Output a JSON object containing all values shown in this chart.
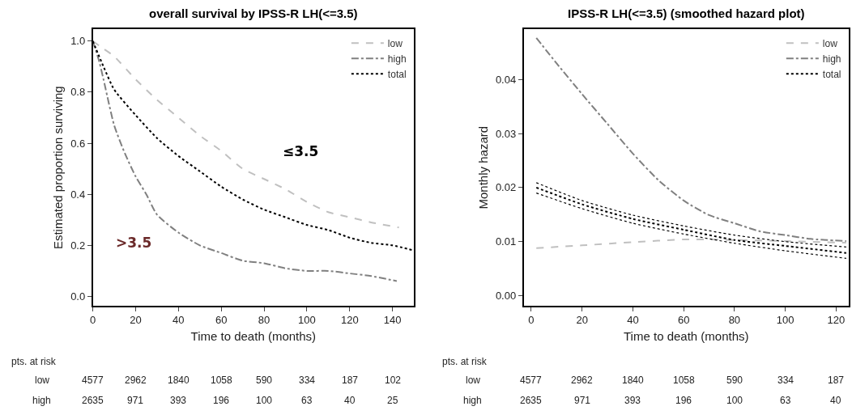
{
  "chart_data": [
    {
      "type": "line",
      "title": "overall survival by IPSS-R LH(<=3.5)",
      "xlabel": "Time to death (months)",
      "ylabel": "Estimated proportion surviving",
      "xlim": [
        0,
        150
      ],
      "xticks": [
        0,
        20,
        40,
        60,
        80,
        100,
        120,
        140
      ],
      "ylim": [
        -0.037,
        1.046
      ],
      "yticks": [
        {
          "value": 0,
          "label": "0.0"
        },
        {
          "value": 0.2,
          "label": "0.2"
        },
        {
          "value": 0.4,
          "label": "0.4"
        },
        {
          "value": 0.6,
          "label": "0.6"
        },
        {
          "value": 0.8,
          "label": "0.8"
        },
        {
          "value": 1,
          "label": "1.0"
        }
      ],
      "legend": "top right",
      "marker": "none",
      "series": [
        {
          "name": "low",
          "color": "#c0c0c0",
          "line_style": "dashed",
          "x": [
            0,
            5,
            10,
            20,
            30,
            40,
            50,
            60,
            70,
            80,
            90,
            100,
            110,
            120,
            130,
            143
          ],
          "values": [
            1.0,
            0.97,
            0.94,
            0.85,
            0.77,
            0.7,
            0.63,
            0.57,
            0.5,
            0.46,
            0.42,
            0.37,
            0.33,
            0.31,
            0.29,
            0.27
          ]
        },
        {
          "name": "high",
          "color": "#808080",
          "line_style": "dashdot",
          "x": [
            0,
            3,
            5,
            10,
            15,
            20,
            25,
            30,
            40,
            50,
            60,
            70,
            80,
            90,
            100,
            110,
            120,
            130,
            142
          ],
          "values": [
            1.0,
            0.92,
            0.85,
            0.67,
            0.56,
            0.47,
            0.4,
            0.32,
            0.25,
            0.2,
            0.17,
            0.14,
            0.13,
            0.11,
            0.1,
            0.1,
            0.09,
            0.08,
            0.06
          ]
        },
        {
          "name": "total",
          "color": "#000000",
          "line_style": "dotted",
          "x": [
            0,
            5,
            10,
            20,
            30,
            40,
            50,
            60,
            70,
            80,
            90,
            100,
            110,
            120,
            130,
            140,
            150
          ],
          "values": [
            1.0,
            0.9,
            0.81,
            0.71,
            0.62,
            0.55,
            0.49,
            0.43,
            0.38,
            0.34,
            0.31,
            0.28,
            0.26,
            0.23,
            0.21,
            0.2,
            0.18
          ]
        }
      ],
      "annotations": [
        "≤3.5",
        ">3.5",
        "pts. at risk",
        "low",
        "4577",
        "2962",
        "1840",
        "1058",
        "590",
        "334",
        "187",
        "102",
        "high",
        "2635",
        "971",
        "393",
        "196",
        "100",
        "63",
        "40",
        "25"
      ]
    },
    {
      "type": "line",
      "title": "IPSS-R LH(<=3.5) (smoothed hazard plot)",
      "xlabel": "Time to death (months)",
      "ylabel": "Monthly hazard",
      "xlim": [
        -3,
        125
      ],
      "xticks": [
        0,
        20,
        40,
        60,
        80,
        100,
        120
      ],
      "ylim": [
        -0.0019,
        0.0493
      ],
      "yticks": [
        {
          "value": 0,
          "label": "0.00"
        },
        {
          "value": 0.01,
          "label": "0.01"
        },
        {
          "value": 0.02,
          "label": "0.02"
        },
        {
          "value": 0.03,
          "label": "0.03"
        },
        {
          "value": 0.04,
          "label": "0.04"
        }
      ],
      "legend": "top right",
      "marker": "none",
      "series": [
        {
          "name": "low",
          "color": "#c0c0c0",
          "line_style": "dashed",
          "x": [
            2,
            20,
            40,
            60,
            70,
            80,
            100,
            124
          ],
          "values": [
            0.0088,
            0.0093,
            0.0099,
            0.0104,
            0.0104,
            0.0103,
            0.0101,
            0.0098
          ]
        },
        {
          "name": "high",
          "color": "#808080",
          "line_style": "dashdot",
          "x": [
            2,
            10,
            20,
            30,
            40,
            50,
            60,
            70,
            80,
            90,
            100,
            110,
            124
          ],
          "values": [
            0.0477,
            0.043,
            0.0373,
            0.0318,
            0.0263,
            0.0214,
            0.0176,
            0.0149,
            0.0134,
            0.0119,
            0.0112,
            0.0105,
            0.0101
          ]
        },
        {
          "name": "total",
          "color": "#000000",
          "line_style": "dotted",
          "x": [
            2,
            20,
            40,
            60,
            80,
            100,
            124
          ],
          "values": [
            0.02,
            0.0169,
            0.0142,
            0.0122,
            0.0103,
            0.0092,
            0.0079
          ]
        },
        {
          "color": "#000000",
          "line_style": "dotted",
          "x": [
            2,
            20,
            40,
            60,
            80,
            100,
            124
          ],
          "values": [
            0.019,
            0.0161,
            0.0134,
            0.0114,
            0.0097,
            0.0083,
            0.0069
          ]
        },
        {
          "color": "#000000",
          "line_style": "dotted",
          "x": [
            2,
            20,
            40,
            60,
            80,
            100,
            124
          ],
          "values": [
            0.0209,
            0.0176,
            0.0149,
            0.0129,
            0.0112,
            0.01,
            0.009
          ]
        }
      ],
      "annotations": [
        "pts. at risk",
        "low",
        "4577",
        "2962",
        "1840",
        "1058",
        "590",
        "334",
        "187",
        "high",
        "2635",
        "971",
        "393",
        "196",
        "100",
        "63",
        "40"
      ]
    }
  ]
}
